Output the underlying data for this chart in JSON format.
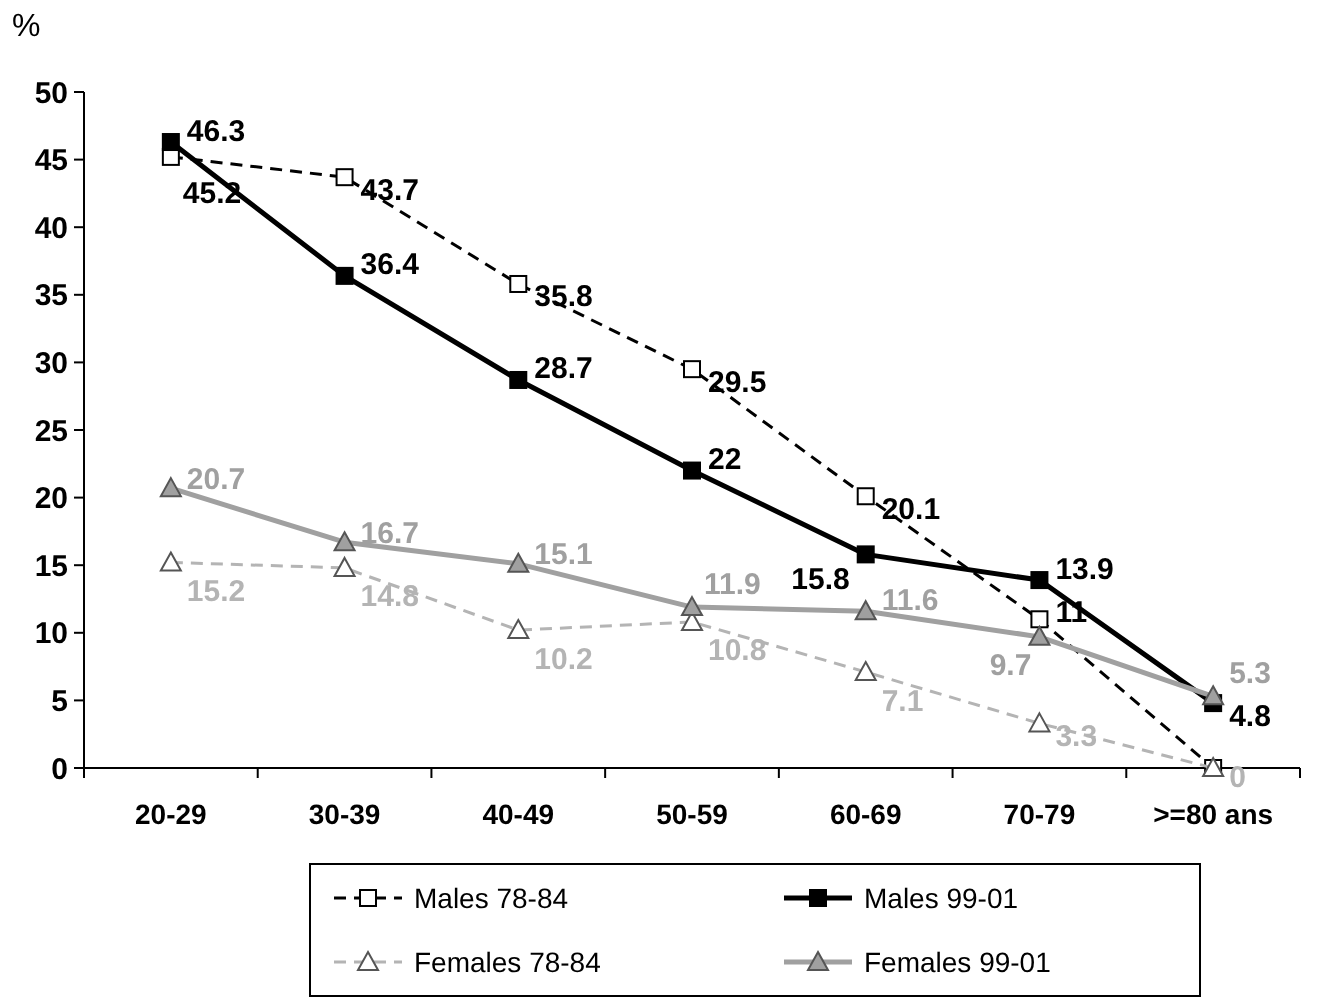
{
  "chart_data": {
    "type": "line",
    "ylabel": "%",
    "categories": [
      "20-29",
      "30-39",
      "40-49",
      "50-59",
      "60-69",
      "70-79",
      ">=80 ans"
    ],
    "ylim": [
      0,
      50
    ],
    "yticks": [
      0,
      5,
      10,
      15,
      20,
      25,
      30,
      35,
      40,
      45,
      50
    ],
    "grid": false,
    "legend": "bottom",
    "data_labels": true,
    "series": [
      {
        "name": "Males 78-84",
        "color": "#000000",
        "marker": "square",
        "line_style": "dashed",
        "values": [
          45.2,
          43.7,
          35.8,
          29.5,
          20.1,
          11,
          0
        ],
        "value_labels": [
          "45.2",
          "43.7",
          "35.8",
          "29.5",
          "20.1",
          "11",
          null
        ]
      },
      {
        "name": "Males 99-01",
        "color": "#000000",
        "marker": "square",
        "line_style": "solid",
        "values": [
          46.3,
          36.4,
          28.7,
          22,
          15.8,
          13.9,
          4.8
        ]
      },
      {
        "name": "Females 78-84",
        "color": "#b4b4b4",
        "marker": "triangle",
        "line_style": "dashed",
        "values": [
          15.2,
          14.8,
          10.2,
          10.8,
          7.1,
          3.3,
          0
        ]
      },
      {
        "name": "Females 99-01",
        "color": "#a0a0a0",
        "marker": "triangle",
        "line_style": "solid",
        "values": [
          20.7,
          16.7,
          15.1,
          11.9,
          11.6,
          9.7,
          5.3
        ]
      }
    ]
  }
}
